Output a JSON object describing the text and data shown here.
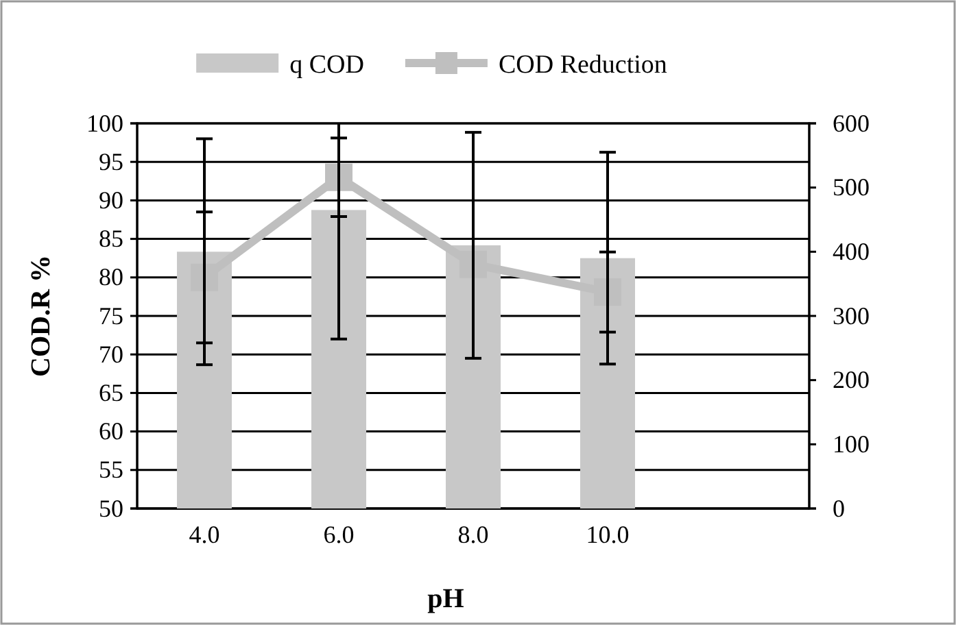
{
  "chart_data": {
    "type": "bar",
    "xlabel": "pH",
    "ylabel": "COD.R %",
    "categories": [
      "4.0",
      "6.0",
      "8.0",
      "10.0",
      null
    ],
    "series": [
      {
        "name": "q COD",
        "axis": "y2",
        "color": "#c8c8c8",
        "values": [
          400,
          465,
          410,
          390,
          null
        ],
        "errors": [
          176,
          201,
          176,
          165,
          null
        ]
      },
      {
        "name": "COD Reduction",
        "type": "line",
        "color": "#bfbfbf",
        "values": [
          80,
          93,
          81.7,
          78.1,
          null
        ],
        "errors": [
          8.5,
          5.1,
          null,
          5.2,
          null
        ]
      }
    ],
    "ylim": [
      50,
      100
    ],
    "yticks": [
      50,
      55,
      60,
      65,
      70,
      75,
      80,
      85,
      90,
      95,
      100
    ],
    "y2lim": [
      0,
      600
    ],
    "y2ticks": [
      0,
      100,
      200,
      300,
      400,
      500,
      600
    ],
    "grid": "y",
    "legend": "top",
    "marker": "square",
    "line_style": "solid"
  }
}
